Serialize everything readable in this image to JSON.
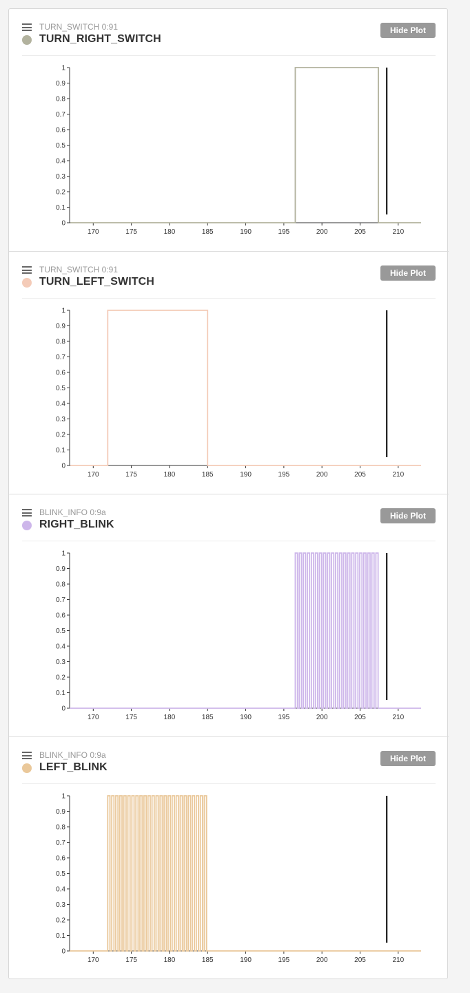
{
  "plots": [
    {
      "message": "TURN_SWITCH 0:91",
      "signal": "TURN_RIGHT_SWITCH",
      "color": "#b2b29e",
      "button": "Hide Plot",
      "icon": "hamburger-icon",
      "chart_data": {
        "type": "line",
        "step": true,
        "series": [
          {
            "points": [
              [
                167,
                0
              ],
              [
                196.5,
                0
              ],
              [
                196.5,
                1
              ],
              [
                207.4,
                1
              ],
              [
                207.4,
                0
              ],
              [
                213,
                0
              ]
            ]
          }
        ],
        "xlim": [
          166.9,
          213
        ],
        "ylim": [
          0,
          1
        ],
        "xticks": [
          170,
          175,
          180,
          185,
          190,
          195,
          200,
          205,
          210
        ],
        "yticks": [
          0,
          0.1,
          0.2,
          0.3,
          0.4,
          0.5,
          0.6,
          0.7,
          0.8,
          0.9,
          1
        ],
        "cursor_x": 208.5
      }
    },
    {
      "message": "TURN_SWITCH 0:91",
      "signal": "TURN_LEFT_SWITCH",
      "color": "#f4cbb8",
      "button": "Hide Plot",
      "icon": "hamburger-icon",
      "chart_data": {
        "type": "line",
        "step": true,
        "series": [
          {
            "points": [
              [
                167,
                0
              ],
              [
                171.9,
                0
              ],
              [
                171.9,
                1
              ],
              [
                185,
                1
              ],
              [
                185,
                0
              ],
              [
                213,
                0
              ]
            ]
          }
        ],
        "xlim": [
          166.9,
          213
        ],
        "ylim": [
          0,
          1
        ],
        "xticks": [
          170,
          175,
          180,
          185,
          190,
          195,
          200,
          205,
          210
        ],
        "yticks": [
          0,
          0.1,
          0.2,
          0.3,
          0.4,
          0.5,
          0.6,
          0.7,
          0.8,
          0.9,
          1
        ],
        "cursor_x": 208.5
      }
    },
    {
      "message": "BLINK_INFO 0:9a",
      "signal": "RIGHT_BLINK",
      "color": "#cdb6ea",
      "button": "Hide Plot",
      "icon": "hamburger-icon",
      "chart_data": {
        "type": "line",
        "step": true,
        "pulse_train": {
          "start": 196.5,
          "end": 207.6,
          "count": 21
        },
        "xlim": [
          166.9,
          213
        ],
        "ylim": [
          0,
          1
        ],
        "xticks": [
          170,
          175,
          180,
          185,
          190,
          195,
          200,
          205,
          210
        ],
        "yticks": [
          0,
          0.1,
          0.2,
          0.3,
          0.4,
          0.5,
          0.6,
          0.7,
          0.8,
          0.9,
          1
        ],
        "cursor_x": 208.5
      }
    },
    {
      "message": "BLINK_INFO 0:9a",
      "signal": "LEFT_BLINK",
      "color": "#eac89a",
      "button": "Hide Plot",
      "icon": "hamburger-icon",
      "chart_data": {
        "type": "line",
        "step": true,
        "pulse_train": {
          "start": 171.9,
          "end": 185.1,
          "count": 25
        },
        "xlim": [
          166.9,
          213
        ],
        "ylim": [
          0,
          1
        ],
        "xticks": [
          170,
          175,
          180,
          185,
          190,
          195,
          200,
          205,
          210
        ],
        "yticks": [
          0,
          0.1,
          0.2,
          0.3,
          0.4,
          0.5,
          0.6,
          0.7,
          0.8,
          0.9,
          1
        ],
        "cursor_x": 208.5
      }
    }
  ]
}
